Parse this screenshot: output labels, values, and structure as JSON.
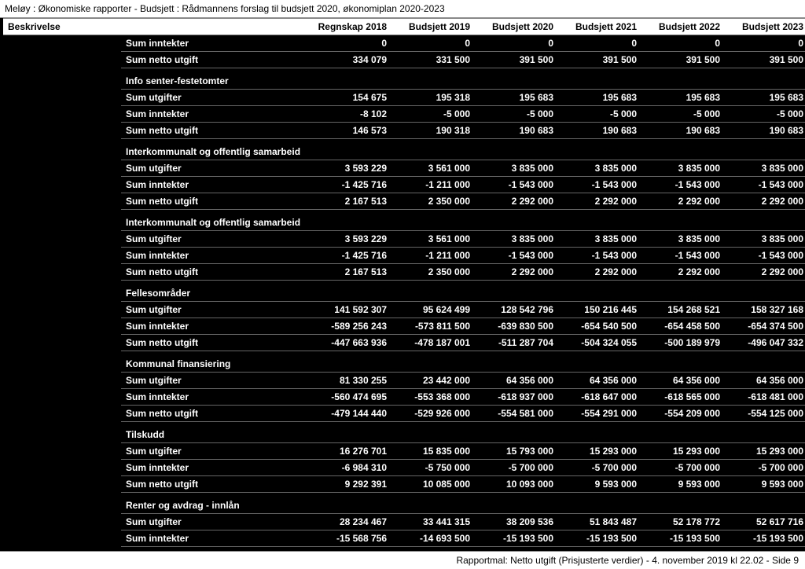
{
  "header": "Meløy : Økonomiske rapporter - Budsjett : Rådmannens forslag til budsjett 2020, økonomiplan 2020-2023",
  "footer": "Rapportmal: Netto utgift (Prisjusterte verdier) - 4. november 2019 kl 22.02 - Side 9",
  "columns": [
    "Beskrivelse",
    "Regnskap 2018",
    "Budsjett 2019",
    "Budsjett 2020",
    "Budsjett 2021",
    "Budsjett 2022",
    "Budsjett 2023"
  ],
  "groups": [
    {
      "title": null,
      "rows": [
        {
          "label": "Sum inntekter",
          "v": [
            "0",
            "0",
            "0",
            "0",
            "0",
            "0"
          ]
        },
        {
          "label": "Sum netto utgift",
          "v": [
            "334 079",
            "331 500",
            "391 500",
            "391 500",
            "391 500",
            "391 500"
          ]
        }
      ]
    },
    {
      "title": "Info senter-festetomter",
      "rows": [
        {
          "label": "Sum utgifter",
          "v": [
            "154 675",
            "195 318",
            "195 683",
            "195 683",
            "195 683",
            "195 683"
          ]
        },
        {
          "label": "Sum inntekter",
          "v": [
            "-8 102",
            "-5 000",
            "-5 000",
            "-5 000",
            "-5 000",
            "-5 000"
          ]
        },
        {
          "label": "Sum netto utgift",
          "v": [
            "146 573",
            "190 318",
            "190 683",
            "190 683",
            "190 683",
            "190 683"
          ]
        }
      ]
    },
    {
      "title": "Interkommunalt og offentlig samarbeid",
      "rows": [
        {
          "label": "Sum utgifter",
          "v": [
            "3 593 229",
            "3 561 000",
            "3 835 000",
            "3 835 000",
            "3 835 000",
            "3 835 000"
          ]
        },
        {
          "label": "Sum inntekter",
          "v": [
            "-1 425 716",
            "-1 211 000",
            "-1 543 000",
            "-1 543 000",
            "-1 543 000",
            "-1 543 000"
          ]
        },
        {
          "label": "Sum netto utgift",
          "v": [
            "2 167 513",
            "2 350 000",
            "2 292 000",
            "2 292 000",
            "2 292 000",
            "2 292 000"
          ]
        }
      ]
    },
    {
      "title": "Interkommunalt og offentlig samarbeid",
      "rows": [
        {
          "label": "Sum utgifter",
          "v": [
            "3 593 229",
            "3 561 000",
            "3 835 000",
            "3 835 000",
            "3 835 000",
            "3 835 000"
          ]
        },
        {
          "label": "Sum inntekter",
          "v": [
            "-1 425 716",
            "-1 211 000",
            "-1 543 000",
            "-1 543 000",
            "-1 543 000",
            "-1 543 000"
          ]
        },
        {
          "label": "Sum netto utgift",
          "v": [
            "2 167 513",
            "2 350 000",
            "2 292 000",
            "2 292 000",
            "2 292 000",
            "2 292 000"
          ]
        }
      ]
    },
    {
      "title": "Fellesområder",
      "rows": [
        {
          "label": "Sum utgifter",
          "v": [
            "141 592 307",
            "95 624 499",
            "128 542 796",
            "150 216 445",
            "154 268 521",
            "158 327 168"
          ]
        },
        {
          "label": "Sum inntekter",
          "v": [
            "-589 256 243",
            "-573 811 500",
            "-639 830 500",
            "-654 540 500",
            "-654 458 500",
            "-654 374 500"
          ]
        },
        {
          "label": "Sum netto utgift",
          "v": [
            "-447 663 936",
            "-478 187 001",
            "-511 287 704",
            "-504 324 055",
            "-500 189 979",
            "-496 047 332"
          ]
        }
      ]
    },
    {
      "title": "Kommunal finansiering",
      "rows": [
        {
          "label": "Sum utgifter",
          "v": [
            "81 330 255",
            "23 442 000",
            "64 356 000",
            "64 356 000",
            "64 356 000",
            "64 356 000"
          ]
        },
        {
          "label": "Sum inntekter",
          "v": [
            "-560 474 695",
            "-553 368 000",
            "-618 937 000",
            "-618 647 000",
            "-618 565 000",
            "-618 481 000"
          ]
        },
        {
          "label": "Sum netto utgift",
          "v": [
            "-479 144 440",
            "-529 926 000",
            "-554 581 000",
            "-554 291 000",
            "-554 209 000",
            "-554 125 000"
          ]
        }
      ]
    },
    {
      "title": "Tilskudd",
      "rows": [
        {
          "label": "Sum utgifter",
          "v": [
            "16 276 701",
            "15 835 000",
            "15 793 000",
            "15 293 000",
            "15 293 000",
            "15 293 000"
          ]
        },
        {
          "label": "Sum inntekter",
          "v": [
            "-6 984 310",
            "-5 750 000",
            "-5 700 000",
            "-5 700 000",
            "-5 700 000",
            "-5 700 000"
          ]
        },
        {
          "label": "Sum netto utgift",
          "v": [
            "9 292 391",
            "10 085 000",
            "10 093 000",
            "9 593 000",
            "9 593 000",
            "9 593 000"
          ]
        }
      ]
    },
    {
      "title": "Renter og avdrag - innlån",
      "rows": [
        {
          "label": "Sum utgifter",
          "v": [
            "28 234 467",
            "33 441 315",
            "38 209 536",
            "51 843 487",
            "52 178 772",
            "52 617 716"
          ]
        },
        {
          "label": "Sum inntekter",
          "v": [
            "-15 568 756",
            "-14 693 500",
            "-15 193 500",
            "-15 193 500",
            "-15 193 500",
            "-15 193 500"
          ]
        }
      ]
    }
  ]
}
